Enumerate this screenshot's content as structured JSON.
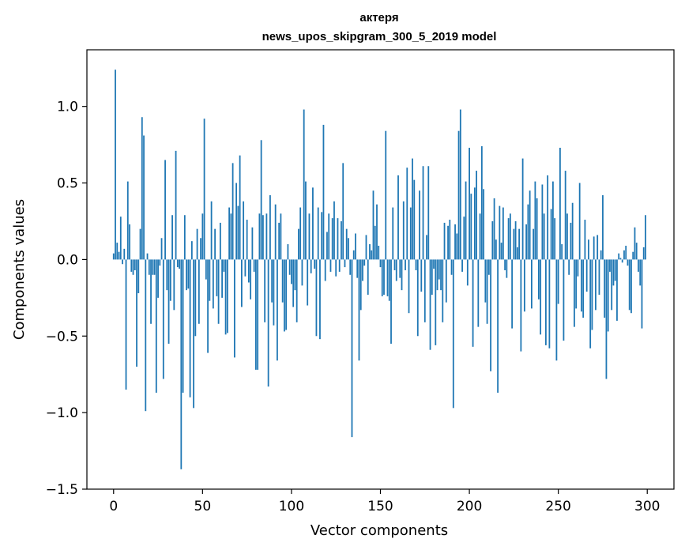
{
  "chart_data": {
    "type": "bar",
    "title": "актеря",
    "subtitle": "news_upos_skipgram_300_5_2019 model",
    "xlabel": "Vector components",
    "ylabel": "Components values",
    "xlim": [
      -15,
      315
    ],
    "ylim": [
      -1.5,
      1.37
    ],
    "xticks": [
      0,
      50,
      100,
      150,
      200,
      250,
      300
    ],
    "yticks": [
      -1.5,
      -1.0,
      -0.5,
      0.0,
      0.5,
      1.0
    ],
    "ytick_labels": [
      "−1.5",
      "−1.0",
      "−0.5",
      "0.0",
      "0.5",
      "1.0"
    ],
    "bar_color": "#1f77b4",
    "grid": false,
    "values": [
      0.04,
      1.24,
      0.11,
      0.05,
      0.28,
      -0.03,
      0.07,
      -0.85,
      0.51,
      0.23,
      -0.08,
      -0.1,
      -0.07,
      -0.7,
      -0.22,
      0.2,
      0.93,
      0.81,
      -0.99,
      0.04,
      -0.1,
      -0.42,
      -0.1,
      -0.1,
      -0.87,
      -0.25,
      -0.04,
      0.14,
      -0.78,
      0.65,
      -0.2,
      -0.55,
      -0.27,
      0.29,
      -0.33,
      0.71,
      -0.05,
      -0.06,
      -1.37,
      -0.87,
      0.29,
      -0.2,
      -0.19,
      -0.9,
      0.12,
      -0.97,
      -0.5,
      0.2,
      -0.42,
      0.14,
      0.3,
      0.92,
      -0.13,
      -0.61,
      -0.27,
      0.38,
      -0.32,
      0.2,
      -0.24,
      -0.42,
      0.24,
      -0.25,
      -0.08,
      -0.49,
      -0.48,
      0.34,
      0.3,
      0.63,
      -0.64,
      0.5,
      0.35,
      0.68,
      -0.31,
      0.38,
      -0.11,
      0.26,
      -0.15,
      -0.26,
      0.21,
      -0.08,
      -0.72,
      -0.72,
      0.3,
      0.78,
      0.29,
      -0.41,
      0.3,
      -0.83,
      0.42,
      -0.28,
      -0.43,
      0.36,
      -0.66,
      0.24,
      0.3,
      -0.28,
      -0.47,
      -0.46,
      0.1,
      -0.1,
      -0.16,
      -0.31,
      -0.2,
      -0.41,
      0.2,
      0.34,
      -0.17,
      0.98,
      0.51,
      -0.3,
      0.3,
      -0.09,
      0.47,
      -0.06,
      -0.5,
      0.34,
      -0.52,
      0.31,
      0.88,
      -0.14,
      0.18,
      0.3,
      -0.08,
      0.27,
      0.38,
      -0.11,
      0.27,
      -0.08,
      0.25,
      0.63,
      -0.05,
      0.2,
      0.14,
      -0.1,
      -1.16,
      0.06,
      0.17,
      -0.12,
      -0.66,
      -0.33,
      -0.14,
      -0.04,
      0.16,
      -0.23,
      0.1,
      0.06,
      0.45,
      0.22,
      0.36,
      0.09,
      -0.05,
      -0.24,
      -0.23,
      0.84,
      -0.24,
      -0.27,
      -0.55,
      0.34,
      -0.07,
      -0.14,
      0.55,
      -0.12,
      -0.2,
      0.38,
      -0.07,
      0.6,
      -0.35,
      0.34,
      0.66,
      0.52,
      -0.07,
      -0.5,
      0.45,
      -0.21,
      0.61,
      -0.41,
      0.16,
      0.61,
      -0.59,
      -0.23,
      -0.06,
      -0.56,
      -0.2,
      -0.13,
      -0.2,
      -0.41,
      0.24,
      -0.28,
      0.22,
      0.26,
      -0.1,
      -0.97,
      0.23,
      0.17,
      0.84,
      0.98,
      -0.08,
      0.28,
      0.51,
      -0.17,
      0.73,
      0.43,
      -0.57,
      0.47,
      0.58,
      -0.44,
      0.3,
      0.74,
      0.46,
      -0.28,
      -0.42,
      -0.1,
      -0.73,
      0.25,
      0.4,
      0.13,
      -0.87,
      0.35,
      0.11,
      0.34,
      -0.07,
      -0.12,
      0.27,
      0.3,
      -0.45,
      0.2,
      0.25,
      0.08,
      0.2,
      -0.6,
      0.66,
      -0.34,
      0.23,
      0.36,
      0.45,
      -0.32,
      0.2,
      0.51,
      0.4,
      -0.26,
      -0.49,
      0.49,
      0.3,
      -0.56,
      0.55,
      -0.58,
      0.33,
      0.51,
      0.27,
      -0.66,
      -0.29,
      0.73,
      0.1,
      -0.53,
      0.58,
      0.3,
      -0.1,
      0.24,
      0.37,
      -0.44,
      -0.32,
      -0.11,
      0.5,
      -0.34,
      -0.38,
      0.26,
      -0.21,
      0.13,
      -0.58,
      -0.46,
      0.15,
      -0.33,
      0.16,
      -0.23,
      0.06,
      0.42,
      -0.38,
      -0.78,
      -0.47,
      -0.08,
      -0.33,
      -0.17,
      -0.14,
      -0.4,
      0.04,
      0.01,
      -0.02,
      0.06,
      0.09,
      -0.04,
      -0.33,
      -0.35,
      0.05,
      0.21,
      0.11,
      -0.08,
      -0.17,
      -0.45,
      0.08,
      0.29
    ]
  }
}
